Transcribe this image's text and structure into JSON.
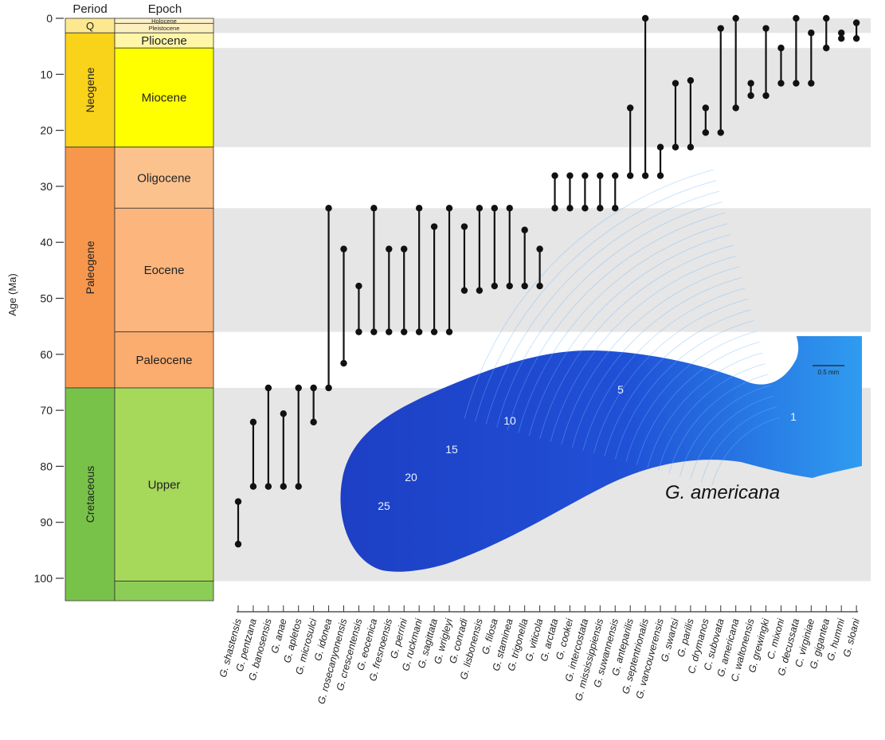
{
  "chart_data": {
    "type": "range",
    "ylabel": "Age (Ma)",
    "ylim": [
      0,
      100
    ],
    "yticks": [
      "0",
      "10",
      "20",
      "30",
      "40",
      "50",
      "60",
      "70",
      "80",
      "90",
      "100"
    ],
    "ytick_values": [
      0,
      10,
      20,
      30,
      40,
      50,
      60,
      70,
      80,
      90,
      100
    ],
    "column_headers": {
      "period": "Period",
      "epoch": "Epoch"
    },
    "periods": [
      {
        "name": "Q",
        "start": 0,
        "end": 2.6,
        "color": "#fce88f"
      },
      {
        "name": "Neogene",
        "start": 2.6,
        "end": 23,
        "color": "#f9d21a"
      },
      {
        "name": "Paleogene",
        "start": 23,
        "end": 66,
        "color": "#f7974d"
      },
      {
        "name": "Cretaceous",
        "start": 66,
        "end": 104,
        "color": "#79c24a"
      }
    ],
    "epochs": [
      {
        "name": "Holocene",
        "start": 0,
        "end": 0.9,
        "color": "#fef2c8",
        "small": true
      },
      {
        "name": "Pleistocene",
        "start": 0.9,
        "end": 2.6,
        "color": "#fdf0bf",
        "small": true
      },
      {
        "name": "Pliocene",
        "start": 2.6,
        "end": 5.3,
        "color": "#fff6a8"
      },
      {
        "name": "Miocene",
        "start": 5.3,
        "end": 23,
        "color": "#ffff00"
      },
      {
        "name": "Oligocene",
        "start": 23,
        "end": 33.9,
        "color": "#fcc28e"
      },
      {
        "name": "Eocene",
        "start": 33.9,
        "end": 56,
        "color": "#fbb57d"
      },
      {
        "name": "Paleocene",
        "start": 56,
        "end": 66,
        "color": "#fbac6f"
      },
      {
        "name": "Upper",
        "start": 66,
        "end": 100.5,
        "color": "#a6d85a"
      },
      {
        "name": "",
        "start": 100.5,
        "end": 104,
        "color": "#8ccd57"
      }
    ],
    "bands": [
      {
        "start": 0,
        "end": 2.6
      },
      {
        "start": 5.3,
        "end": 23
      },
      {
        "start": 33.9,
        "end": 56
      },
      {
        "start": 66,
        "end": 100.5
      }
    ],
    "band_color": "#e6e6e6",
    "series": [
      {
        "name": "G. shastensis",
        "top": 86.3,
        "bottom": 93.9
      },
      {
        "name": "G. pentzana",
        "top": 72.1,
        "bottom": 83.6
      },
      {
        "name": "G. banosensis",
        "top": 66,
        "bottom": 83.6
      },
      {
        "name": "G. anae",
        "top": 70.6,
        "bottom": 83.6
      },
      {
        "name": "G. apletos",
        "top": 66,
        "bottom": 83.6
      },
      {
        "name": "G. microsulci",
        "top": 66,
        "bottom": 72.1
      },
      {
        "name": "G. idonea",
        "top": 33.9,
        "bottom": 66
      },
      {
        "name": "G. rosecanyonensis",
        "top": 41.2,
        "bottom": 61.6
      },
      {
        "name": "G. crescentensis",
        "top": 47.8,
        "bottom": 56
      },
      {
        "name": "G. eocenica",
        "top": 33.9,
        "bottom": 56
      },
      {
        "name": "G. fresnoensis",
        "top": 41.2,
        "bottom": 56
      },
      {
        "name": "G. perrini",
        "top": 41.2,
        "bottom": 56
      },
      {
        "name": "G. ruckmani",
        "top": 33.9,
        "bottom": 56
      },
      {
        "name": "G. sagittata",
        "top": 37.2,
        "bottom": 56
      },
      {
        "name": "G. wrigleyi",
        "top": 33.9,
        "bottom": 56
      },
      {
        "name": "G. conradi",
        "top": 37.2,
        "bottom": 48.6
      },
      {
        "name": "G. lisbonensis",
        "top": 33.9,
        "bottom": 48.6
      },
      {
        "name": "G. filosa",
        "top": 33.9,
        "bottom": 47.8
      },
      {
        "name": "G. staminea",
        "top": 33.9,
        "bottom": 47.8
      },
      {
        "name": "G. trigonella",
        "top": 37.8,
        "bottom": 47.8
      },
      {
        "name": "G. viticola",
        "top": 41.2,
        "bottom": 47.8
      },
      {
        "name": "G. arctata",
        "top": 28.1,
        "bottom": 33.9
      },
      {
        "name": "G. cookei",
        "top": 28.1,
        "bottom": 33.9
      },
      {
        "name": "G. intercostata",
        "top": 28.1,
        "bottom": 33.9
      },
      {
        "name": "G. mississippiensis",
        "top": 28.1,
        "bottom": 33.9
      },
      {
        "name": "G. suwannensis",
        "top": 28.1,
        "bottom": 33.9
      },
      {
        "name": "G. anteparilis",
        "top": 16,
        "bottom": 28.1
      },
      {
        "name": "G. septentrionalis",
        "top": 0,
        "bottom": 28.1
      },
      {
        "name": "G. vancouverensis",
        "top": 23,
        "bottom": 28.1
      },
      {
        "name": "G. swartsi",
        "top": 11.6,
        "bottom": 23
      },
      {
        "name": "G. parilis",
        "top": 11.1,
        "bottom": 23
      },
      {
        "name": "C. drymanos",
        "top": 16,
        "bottom": 20.4
      },
      {
        "name": "C. subovata",
        "top": 1.8,
        "bottom": 20.4
      },
      {
        "name": "G. americana",
        "top": 0,
        "bottom": 16
      },
      {
        "name": "C. waltonensis",
        "top": 11.6,
        "bottom": 13.8
      },
      {
        "name": "G. grewingki",
        "top": 1.8,
        "bottom": 13.8
      },
      {
        "name": "C. mixoni",
        "top": 5.3,
        "bottom": 11.6
      },
      {
        "name": "G. decussata",
        "top": 0,
        "bottom": 11.6
      },
      {
        "name": "C. virginiae",
        "top": 2.6,
        "bottom": 11.6
      },
      {
        "name": "G. gigantea",
        "top": 0,
        "bottom": 5.3
      },
      {
        "name": "G. hummi",
        "top": 2.6,
        "bottom": 3.6
      },
      {
        "name": "G. sloani",
        "top": 0.8,
        "bottom": 3.6
      }
    ],
    "inset": {
      "title": "G. americana",
      "scale_label": "0.5 mm",
      "ring_labels": [
        "1",
        "5",
        "10",
        "15",
        "20",
        "25"
      ],
      "color_dark": "#1d3fc4",
      "color_light": "#2f9cf0"
    }
  }
}
